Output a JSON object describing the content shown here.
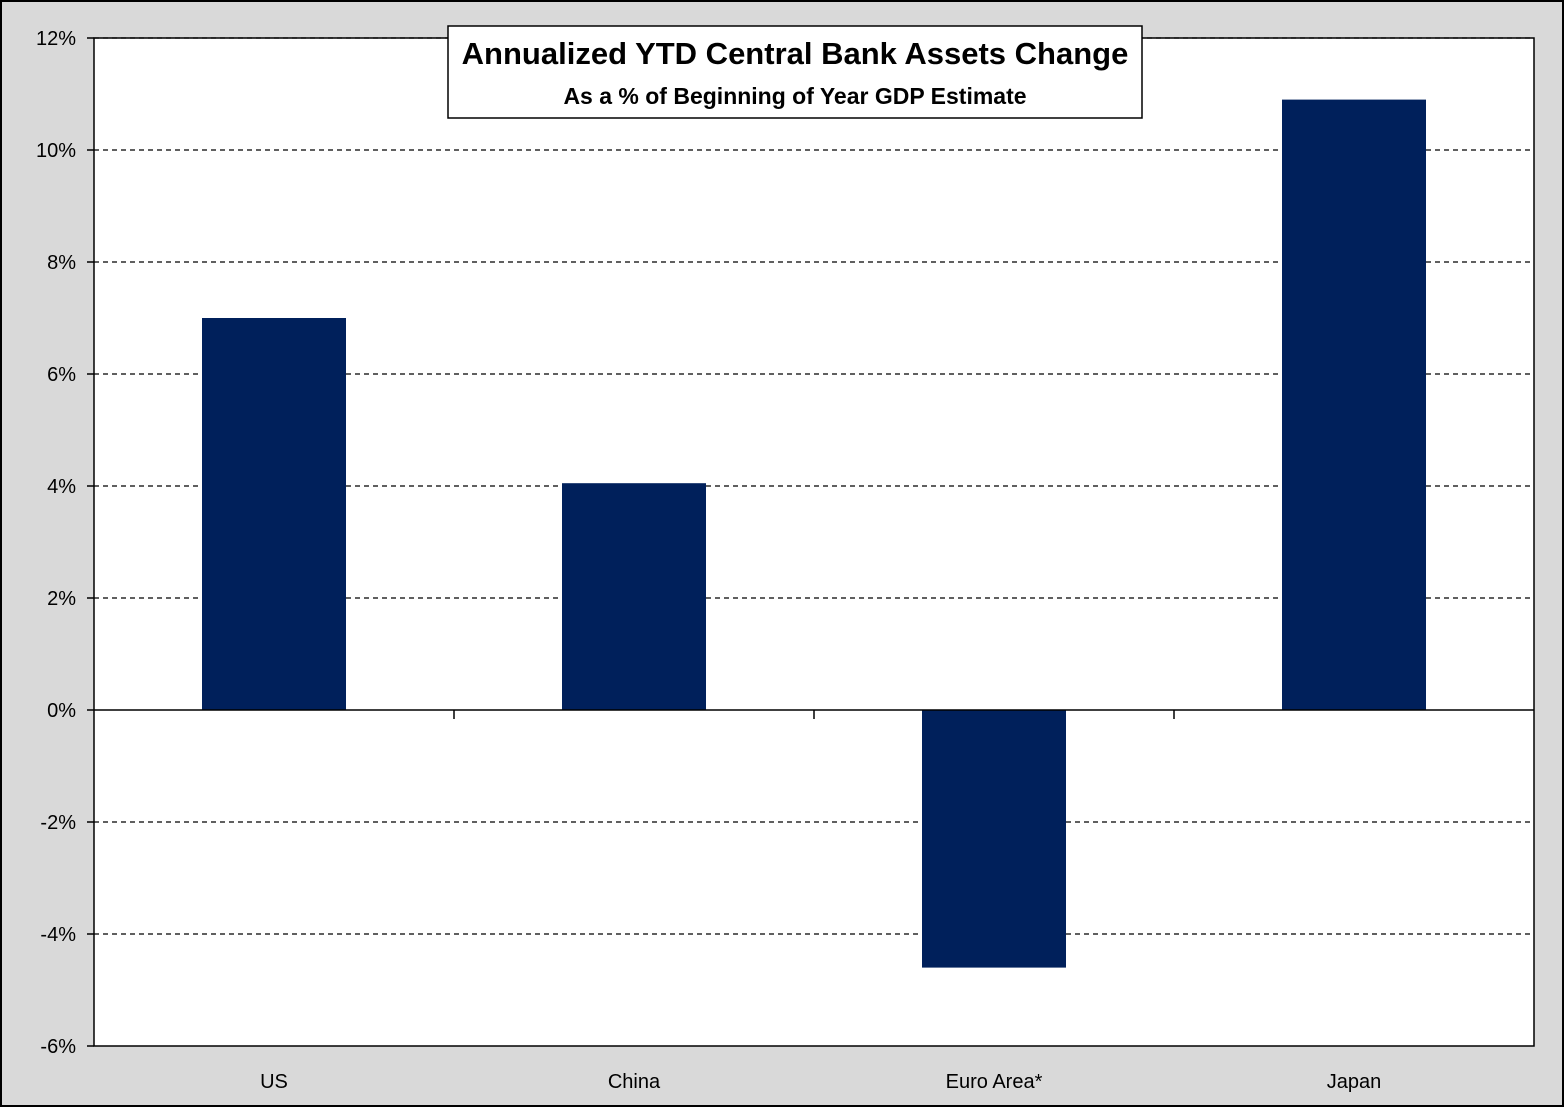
{
  "chart_data": {
    "type": "bar",
    "title": "Annualized YTD Central Bank Assets Change",
    "subtitle": "As a % of Beginning of Year GDP Estimate",
    "categories": [
      "US",
      "China",
      "Euro Area*",
      "Japan"
    ],
    "values": [
      7.0,
      4.05,
      -4.6,
      10.9
    ],
    "ylim": [
      -6,
      12
    ],
    "ytick_step": 2,
    "ytick_labels": [
      "-6%",
      "-4%",
      "-2%",
      "0%",
      "2%",
      "4%",
      "6%",
      "8%",
      "10%",
      "12%"
    ],
    "xlabel": "",
    "ylabel": "",
    "grid": true,
    "grid_style": "dashed",
    "legend": "none",
    "colors": {
      "bar": "#00205b",
      "plot_background": "#ffffff",
      "figure_background": "#d9d9d9",
      "gridline": "#000000"
    }
  }
}
